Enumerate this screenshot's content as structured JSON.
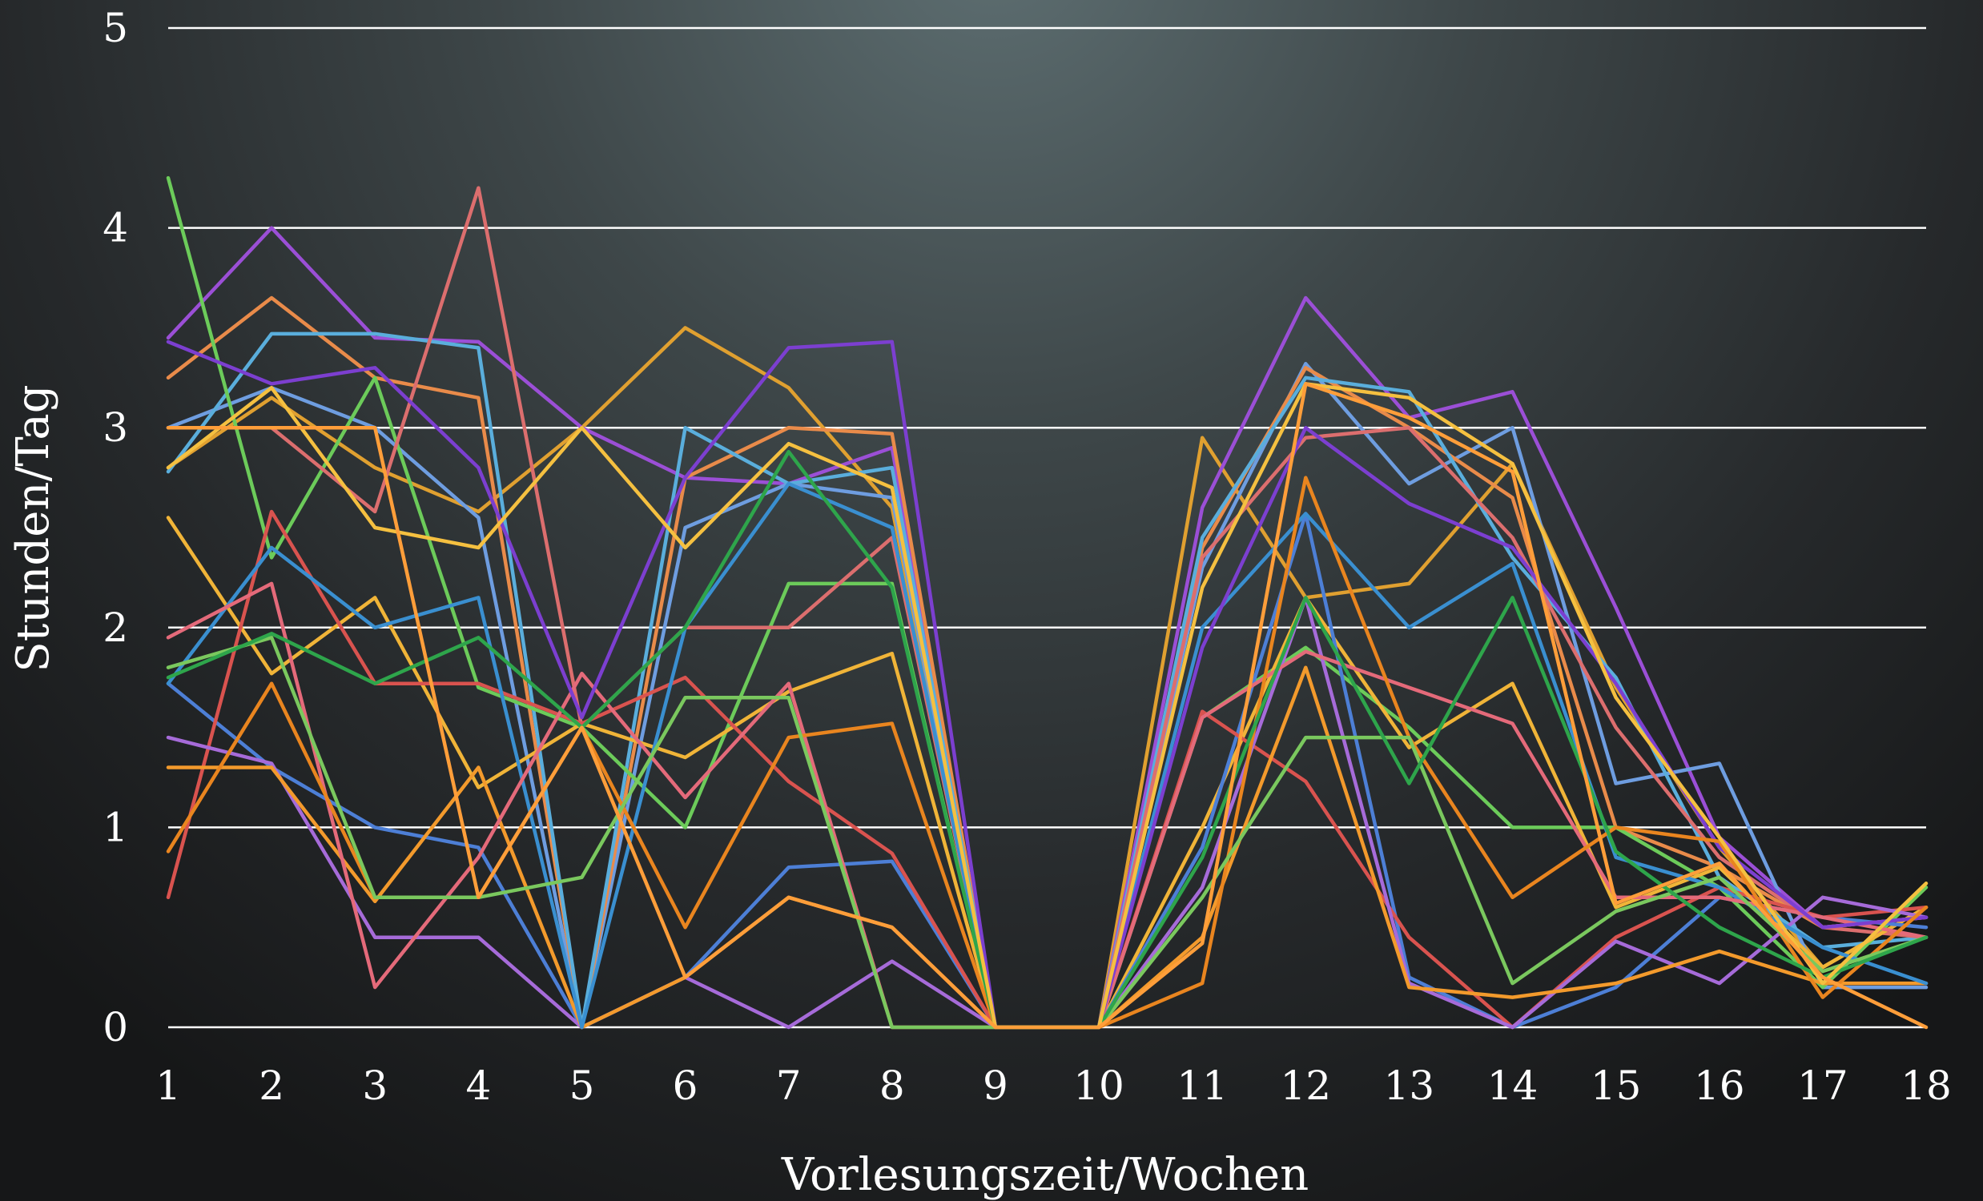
{
  "chart_data": {
    "type": "line",
    "title": "",
    "xlabel": "Vorlesungszeit/Wochen",
    "ylabel": "Stunden/Tag",
    "x": [
      1,
      2,
      3,
      4,
      5,
      6,
      7,
      8,
      9,
      10,
      11,
      12,
      13,
      14,
      15,
      16,
      17,
      18
    ],
    "xlim": [
      1,
      18
    ],
    "ylim": [
      0,
      5
    ],
    "yticks": [
      "0",
      "1",
      "2",
      "3",
      "4",
      "5"
    ],
    "xticks": [
      "1",
      "2",
      "3",
      "4",
      "5",
      "6",
      "7",
      "8",
      "9",
      "10",
      "11",
      "12",
      "13",
      "14",
      "15",
      "16",
      "17",
      "18"
    ],
    "grid": "horizontal",
    "legend": "none",
    "background": "dark radial gradient (#5b6b6e to #1c1d1e)",
    "series": [
      {
        "color": "#e0a030",
        "values": [
          2.8,
          3.15,
          2.8,
          2.58,
          3.0,
          3.5,
          3.2,
          2.6,
          0,
          0,
          2.95,
          2.15,
          2.22,
          2.82,
          1.7,
          0.9,
          0.3,
          0.6
        ]
      },
      {
        "color": "#9b4fd6",
        "values": [
          3.45,
          4.0,
          3.45,
          3.43,
          3.0,
          2.75,
          2.72,
          2.9,
          0,
          0,
          2.6,
          3.65,
          3.05,
          3.18,
          2.1,
          0.95,
          0.5,
          0.55
        ]
      },
      {
        "color": "#6e9de0",
        "values": [
          3.0,
          3.2,
          3.0,
          2.55,
          0,
          2.5,
          2.72,
          2.65,
          0,
          0,
          2.3,
          3.32,
          2.72,
          3.0,
          1.22,
          1.32,
          0.2,
          0.2
        ]
      },
      {
        "color": "#e98b4a",
        "values": [
          3.25,
          3.65,
          3.25,
          3.15,
          0,
          2.75,
          3.0,
          2.97,
          0,
          0,
          2.4,
          3.3,
          3.0,
          2.65,
          1.0,
          0.8,
          0.5,
          0.55
        ]
      },
      {
        "color": "#5aaedc",
        "values": [
          2.78,
          3.47,
          3.47,
          3.4,
          0,
          3.0,
          2.72,
          2.8,
          0,
          0,
          2.45,
          3.25,
          3.18,
          2.35,
          1.75,
          0.75,
          0.4,
          0.45
        ]
      },
      {
        "color": "#6ccb5a",
        "values": [
          4.25,
          2.35,
          3.25,
          1.7,
          1.5,
          1.0,
          2.22,
          2.22,
          0,
          0,
          1.55,
          1.9,
          1.5,
          1.0,
          1.0,
          0.7,
          0.2,
          0.7
        ]
      },
      {
        "color": "#dc6e6e",
        "values": [
          3.0,
          3.0,
          2.58,
          4.2,
          1.5,
          2.0,
          2.0,
          2.45,
          0,
          0,
          2.35,
          2.95,
          3.0,
          2.45,
          1.5,
          0.85,
          0.5,
          0.45
        ]
      },
      {
        "color": "#f0b438",
        "values": [
          2.55,
          1.77,
          2.15,
          1.2,
          1.52,
          1.35,
          1.68,
          1.87,
          0,
          0,
          1.0,
          2.15,
          1.4,
          1.72,
          0.6,
          0.8,
          0.3,
          0.6
        ]
      },
      {
        "color": "#4d7fd6",
        "values": [
          1.72,
          1.3,
          1.0,
          0.9,
          0,
          0.25,
          0.8,
          0.83,
          0,
          0,
          0.9,
          2.57,
          0.25,
          0,
          0.2,
          0.65,
          0.55,
          0.5
        ]
      },
      {
        "color": "#d9534f",
        "values": [
          0.65,
          2.58,
          1.72,
          1.72,
          1.52,
          1.75,
          1.23,
          0.87,
          0,
          0,
          1.58,
          1.23,
          0.45,
          0,
          0.45,
          0.7,
          0.55,
          0.6
        ]
      },
      {
        "color": "#a66bd9",
        "values": [
          1.45,
          1.32,
          0.45,
          0.45,
          0,
          0.25,
          0,
          0.33,
          0,
          0,
          0.7,
          2.15,
          0.22,
          0,
          0.43,
          0.22,
          0.65,
          0.55
        ]
      },
      {
        "color": "#f39a2c",
        "values": [
          1.3,
          1.3,
          0.63,
          1.3,
          0,
          0.25,
          0.65,
          0.5,
          0,
          0,
          0.45,
          1.8,
          0.2,
          0.15,
          0.22,
          0.38,
          0.22,
          0.22
        ]
      },
      {
        "color": "#3a8fd0",
        "values": [
          1.72,
          2.4,
          2.0,
          2.15,
          0,
          2.0,
          2.72,
          2.5,
          0,
          0,
          2.0,
          2.57,
          2.0,
          2.32,
          0.85,
          0.7,
          0.4,
          0.22
        ]
      },
      {
        "color": "#e46a7a",
        "values": [
          1.95,
          2.22,
          0.2,
          0.85,
          1.77,
          1.15,
          1.72,
          0,
          0,
          0,
          1.55,
          1.88,
          1.7,
          1.52,
          0.65,
          0.65,
          0.55,
          0.45
        ]
      },
      {
        "color": "#7c3fd0",
        "values": [
          3.43,
          3.22,
          3.3,
          2.8,
          1.55,
          2.75,
          3.4,
          3.43,
          0,
          0,
          1.9,
          3.0,
          2.62,
          2.4,
          1.72,
          0.9,
          0.5,
          0.55
        ]
      },
      {
        "color": "#e9851f",
        "values": [
          0.88,
          1.72,
          0.65,
          0.65,
          1.5,
          0.5,
          1.45,
          1.52,
          0,
          0,
          0.22,
          2.75,
          1.45,
          0.65,
          1.0,
          0.93,
          0.15,
          0.6
        ]
      },
      {
        "color": "#7ac85e",
        "values": [
          1.8,
          1.95,
          0.65,
          0.65,
          0.75,
          1.65,
          1.65,
          0,
          0,
          0,
          0.65,
          1.45,
          1.45,
          0.22,
          0.58,
          0.75,
          0.28,
          0.45
        ]
      },
      {
        "color": "#2ea54b",
        "values": [
          1.75,
          1.97,
          1.72,
          1.95,
          1.5,
          2.0,
          2.88,
          2.2,
          0,
          0,
          0.85,
          2.15,
          1.22,
          2.15,
          0.88,
          0.5,
          0.25,
          0.45
        ]
      },
      {
        "color": "#f5c040",
        "values": [
          2.8,
          3.2,
          2.5,
          2.4,
          3.0,
          2.4,
          2.92,
          2.7,
          0,
          0,
          2.2,
          3.22,
          3.15,
          2.82,
          1.65,
          0.95,
          0.22,
          0.72
        ]
      },
      {
        "color": "#ff9e3a",
        "values": [
          3.0,
          3.0,
          3.0,
          0.65,
          1.5,
          0.25,
          0.65,
          0.5,
          0,
          0,
          0.42,
          3.22,
          3.05,
          2.78,
          0.62,
          0.82,
          0.25,
          0
        ]
      }
    ]
  }
}
